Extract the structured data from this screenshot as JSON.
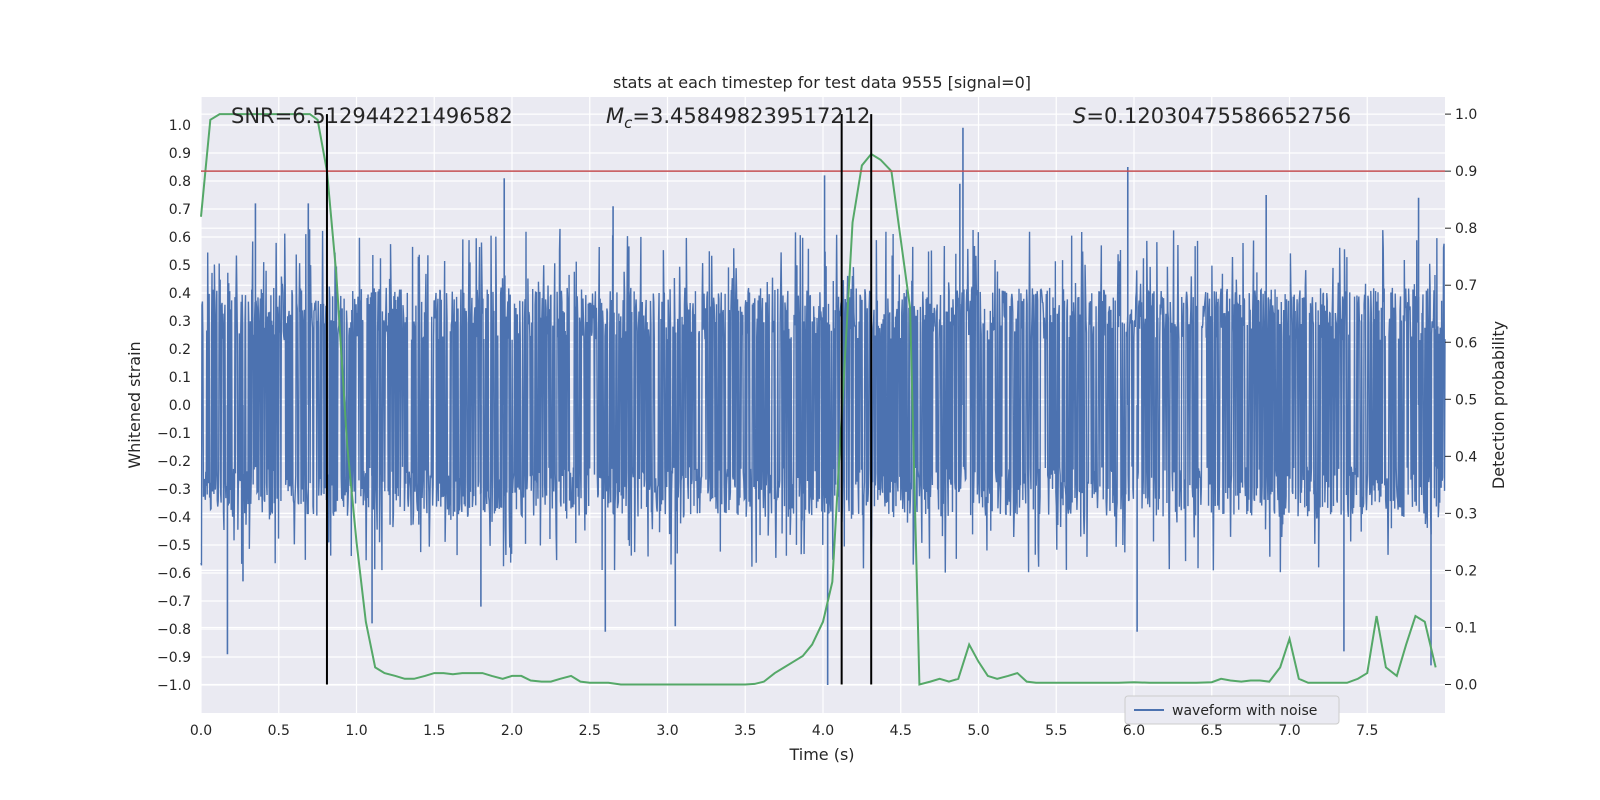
{
  "chart_data": {
    "type": "line",
    "title": "stats at each timestep for test data 9555 [signal=0]",
    "xlabel": "Time (s)",
    "ylabel": "Whitened strain",
    "y2label": "Detection probability",
    "xlim": [
      0.0,
      8.0
    ],
    "ylim": [
      -1.1,
      1.1
    ],
    "y2lim": [
      -0.05,
      1.03
    ],
    "x_ticks": [
      0.0,
      0.5,
      1.0,
      1.5,
      2.0,
      2.5,
      3.0,
      3.5,
      4.0,
      4.5,
      5.0,
      5.5,
      6.0,
      6.5,
      7.0,
      7.5
    ],
    "x_tick_labels": [
      "0.0",
      "0.5",
      "1.0",
      "1.5",
      "2.0",
      "2.5",
      "3.0",
      "3.5",
      "4.0",
      "4.5",
      "5.0",
      "5.5",
      "6.0",
      "6.5",
      "7.0",
      "7.5"
    ],
    "y_ticks": [
      -1.0,
      -0.9,
      -0.8,
      -0.7,
      -0.6,
      -0.5,
      -0.4,
      -0.3,
      -0.2,
      -0.1,
      0.0,
      0.1,
      0.2,
      0.3,
      0.4,
      0.5,
      0.6,
      0.7,
      0.8,
      0.9,
      1.0
    ],
    "y_tick_labels": [
      "−1.0",
      "−0.9",
      "−0.8",
      "−0.7",
      "−0.6",
      "−0.5",
      "−0.4",
      "−0.3",
      "−0.2",
      "−0.1",
      "0.0",
      "0.1",
      "0.2",
      "0.3",
      "0.4",
      "0.5",
      "0.6",
      "0.7",
      "0.8",
      "0.9",
      "1.0"
    ],
    "y2_ticks": [
      0.0,
      0.1,
      0.2,
      0.3,
      0.4,
      0.5,
      0.6,
      0.7,
      0.8,
      0.9,
      1.0
    ],
    "y2_tick_labels": [
      "0.0",
      "0.1",
      "0.2",
      "0.3",
      "0.4",
      "0.5",
      "0.6",
      "0.7",
      "0.8",
      "0.9",
      "1.0"
    ],
    "grid": true,
    "legend": {
      "placement": "lower-right",
      "entries": [
        "waveform with noise"
      ]
    },
    "annotations": {
      "snr": "SNR=6.512944221496582",
      "mc_symbol": "M",
      "mc_sub": "c",
      "mc_value": "=3.458498239517212",
      "s_symbol": "S",
      "s_value": "=0.12030475586652756"
    },
    "threshold": {
      "axis": "y2",
      "value": 0.9
    },
    "vlines": [
      {
        "x": 0.81,
        "ymin": 0.0,
        "ymax": 1.0
      },
      {
        "x": 4.12,
        "ymin": 0.0,
        "ymax": 1.0
      },
      {
        "x": 4.31,
        "ymin": 0.0,
        "ymax": 1.0
      }
    ],
    "series": [
      {
        "name": "waveform with noise",
        "type": "noise",
        "axis": "y",
        "baseline_amplitude": [
          -0.4,
          0.42
        ],
        "spikes": [
          {
            "x": 0.17,
            "y": -0.89
          },
          {
            "x": 0.27,
            "y": -0.63
          },
          {
            "x": 0.35,
            "y": 0.72
          },
          {
            "x": 0.69,
            "y": 0.72
          },
          {
            "x": 1.1,
            "y": -0.78
          },
          {
            "x": 1.95,
            "y": 0.81
          },
          {
            "x": 2.6,
            "y": -0.81
          },
          {
            "x": 2.65,
            "y": 0.71
          },
          {
            "x": 4.03,
            "y": -1.0
          },
          {
            "x": 4.01,
            "y": 0.82
          },
          {
            "x": 4.9,
            "y": 0.99
          },
          {
            "x": 4.88,
            "y": 0.79
          },
          {
            "x": 5.96,
            "y": 0.85
          },
          {
            "x": 6.02,
            "y": -0.81
          },
          {
            "x": 7.35,
            "y": -0.88
          },
          {
            "x": 7.83,
            "y": 0.74
          },
          {
            "x": 7.91,
            "y": -0.93
          },
          {
            "x": 6.85,
            "y": 0.75
          },
          {
            "x": 3.05,
            "y": -0.79
          },
          {
            "x": 1.8,
            "y": -0.72
          }
        ]
      },
      {
        "name": "",
        "type": "line",
        "axis": "y2",
        "color": "#55a868",
        "x": [
          0.0,
          0.06,
          0.12,
          0.2,
          0.3,
          0.4,
          0.5,
          0.6,
          0.7,
          0.75,
          0.81,
          0.87,
          0.94,
          1.0,
          1.06,
          1.12,
          1.18,
          1.25,
          1.31,
          1.37,
          1.44,
          1.5,
          1.56,
          1.62,
          1.68,
          1.75,
          1.81,
          1.87,
          1.94,
          2.0,
          2.06,
          2.12,
          2.19,
          2.25,
          2.31,
          2.38,
          2.44,
          2.5,
          2.56,
          2.62,
          2.7,
          2.8,
          2.9,
          3.0,
          3.1,
          3.2,
          3.3,
          3.4,
          3.5,
          3.56,
          3.62,
          3.69,
          3.75,
          3.81,
          3.87,
          3.93,
          4.0,
          4.06,
          4.12,
          4.19,
          4.25,
          4.31,
          4.37,
          4.44,
          4.5,
          4.56,
          4.62,
          4.69,
          4.75,
          4.81,
          4.87,
          4.94,
          5.0,
          5.06,
          5.12,
          5.19,
          5.25,
          5.31,
          5.37,
          5.44,
          5.5,
          5.6,
          5.7,
          5.8,
          5.9,
          6.0,
          6.1,
          6.2,
          6.3,
          6.4,
          6.5,
          6.56,
          6.62,
          6.69,
          6.75,
          6.81,
          6.87,
          6.94,
          7.0,
          7.06,
          7.12,
          7.19,
          7.25,
          7.31,
          7.37,
          7.44,
          7.5,
          7.56,
          7.62,
          7.69,
          7.75,
          7.81,
          7.87,
          7.94
        ],
        "y": [
          0.82,
          0.99,
          1.0,
          1.0,
          1.0,
          1.0,
          1.0,
          1.0,
          1.0,
          0.99,
          0.9,
          0.72,
          0.42,
          0.25,
          0.11,
          0.03,
          0.02,
          0.015,
          0.01,
          0.01,
          0.015,
          0.02,
          0.02,
          0.018,
          0.02,
          0.02,
          0.02,
          0.015,
          0.01,
          0.015,
          0.015,
          0.007,
          0.005,
          0.005,
          0.01,
          0.015,
          0.005,
          0.003,
          0.003,
          0.003,
          0.0,
          0.0,
          0.0,
          0.0,
          0.0,
          0.0,
          0.0,
          0.0,
          0.0,
          0.001,
          0.005,
          0.02,
          0.03,
          0.04,
          0.05,
          0.07,
          0.11,
          0.18,
          0.47,
          0.81,
          0.91,
          0.93,
          0.92,
          0.9,
          0.78,
          0.66,
          0.0,
          0.005,
          0.01,
          0.005,
          0.01,
          0.07,
          0.04,
          0.015,
          0.01,
          0.015,
          0.02,
          0.005,
          0.003,
          0.003,
          0.003,
          0.003,
          0.003,
          0.003,
          0.003,
          0.004,
          0.003,
          0.003,
          0.003,
          0.003,
          0.004,
          0.01,
          0.007,
          0.005,
          0.007,
          0.007,
          0.005,
          0.03,
          0.08,
          0.01,
          0.003,
          0.003,
          0.003,
          0.003,
          0.003,
          0.01,
          0.02,
          0.12,
          0.03,
          0.015,
          0.07,
          0.12,
          0.11,
          0.03
        ]
      }
    ]
  }
}
